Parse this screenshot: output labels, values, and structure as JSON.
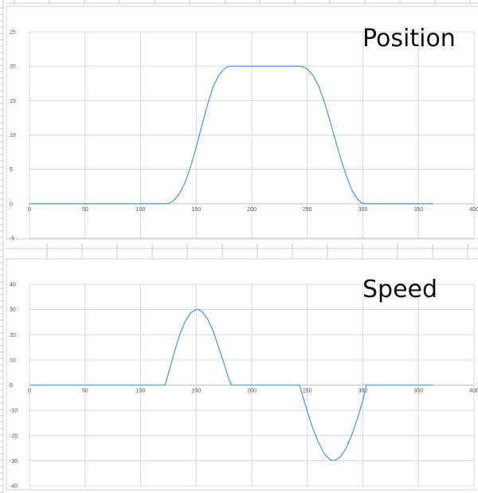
{
  "colors": {
    "series": "#5b9bd5"
  },
  "chart_data": [
    {
      "type": "line",
      "title": "Position",
      "xlabel": "",
      "ylabel": "",
      "xlim": [
        0,
        400
      ],
      "ylim": [
        -5,
        25
      ],
      "x_ticks": [
        0,
        50,
        100,
        150,
        200,
        250,
        300,
        350,
        400
      ],
      "y_ticks": [
        -5,
        0,
        5,
        10,
        15,
        20,
        25
      ],
      "grid": true,
      "series": [
        {
          "x": [
            0,
            100,
            122,
            126,
            130,
            135,
            140,
            145,
            150,
            155,
            160,
            165,
            170,
            175,
            178,
            181,
            190,
            200,
            210,
            220,
            230,
            240,
            243,
            246,
            250,
            255,
            260,
            265,
            270,
            275,
            280,
            285,
            290,
            295,
            298,
            302,
            320,
            340,
            363
          ],
          "y": [
            0,
            0,
            0,
            0.08,
            0.5,
            1.5,
            3.1,
            5.4,
            8.2,
            11.3,
            14.3,
            16.9,
            18.6,
            19.6,
            19.9,
            20,
            20,
            20,
            20,
            20,
            20,
            20,
            20,
            19.9,
            19.6,
            18.7,
            17.2,
            15.0,
            12.3,
            9.4,
            6.6,
            4.1,
            2.0,
            0.7,
            0.2,
            0,
            0,
            0,
            0
          ]
        }
      ]
    },
    {
      "type": "line",
      "title": "Speed",
      "xlabel": "",
      "ylabel": "",
      "xlim": [
        0,
        400
      ],
      "ylim": [
        -40,
        40
      ],
      "x_ticks": [
        0,
        50,
        100,
        150,
        200,
        250,
        300,
        350,
        400
      ],
      "y_ticks": [
        -40,
        -30,
        -20,
        -10,
        0,
        10,
        20,
        30,
        40
      ],
      "grid": true,
      "series": [
        {
          "x": [
            0,
            100,
            122,
            125,
            130,
            135,
            140,
            145,
            150,
            152,
            155,
            160,
            165,
            170,
            175,
            180,
            182,
            200,
            220,
            243,
            246,
            250,
            255,
            260,
            265,
            270,
            273,
            276,
            280,
            285,
            290,
            295,
            300,
            303,
            320,
            340,
            363
          ],
          "y": [
            0,
            0,
            0,
            4.5,
            12.5,
            19.8,
            25.2,
            28.7,
            30,
            30,
            29.3,
            26.5,
            21.8,
            15.2,
            8.6,
            1.6,
            0,
            0,
            0,
            0,
            -4.6,
            -10.5,
            -17.2,
            -22.8,
            -27.0,
            -29.5,
            -30,
            -29.7,
            -28.4,
            -25.0,
            -19.8,
            -13.4,
            -6.1,
            0,
            0,
            0,
            0
          ]
        }
      ]
    }
  ]
}
